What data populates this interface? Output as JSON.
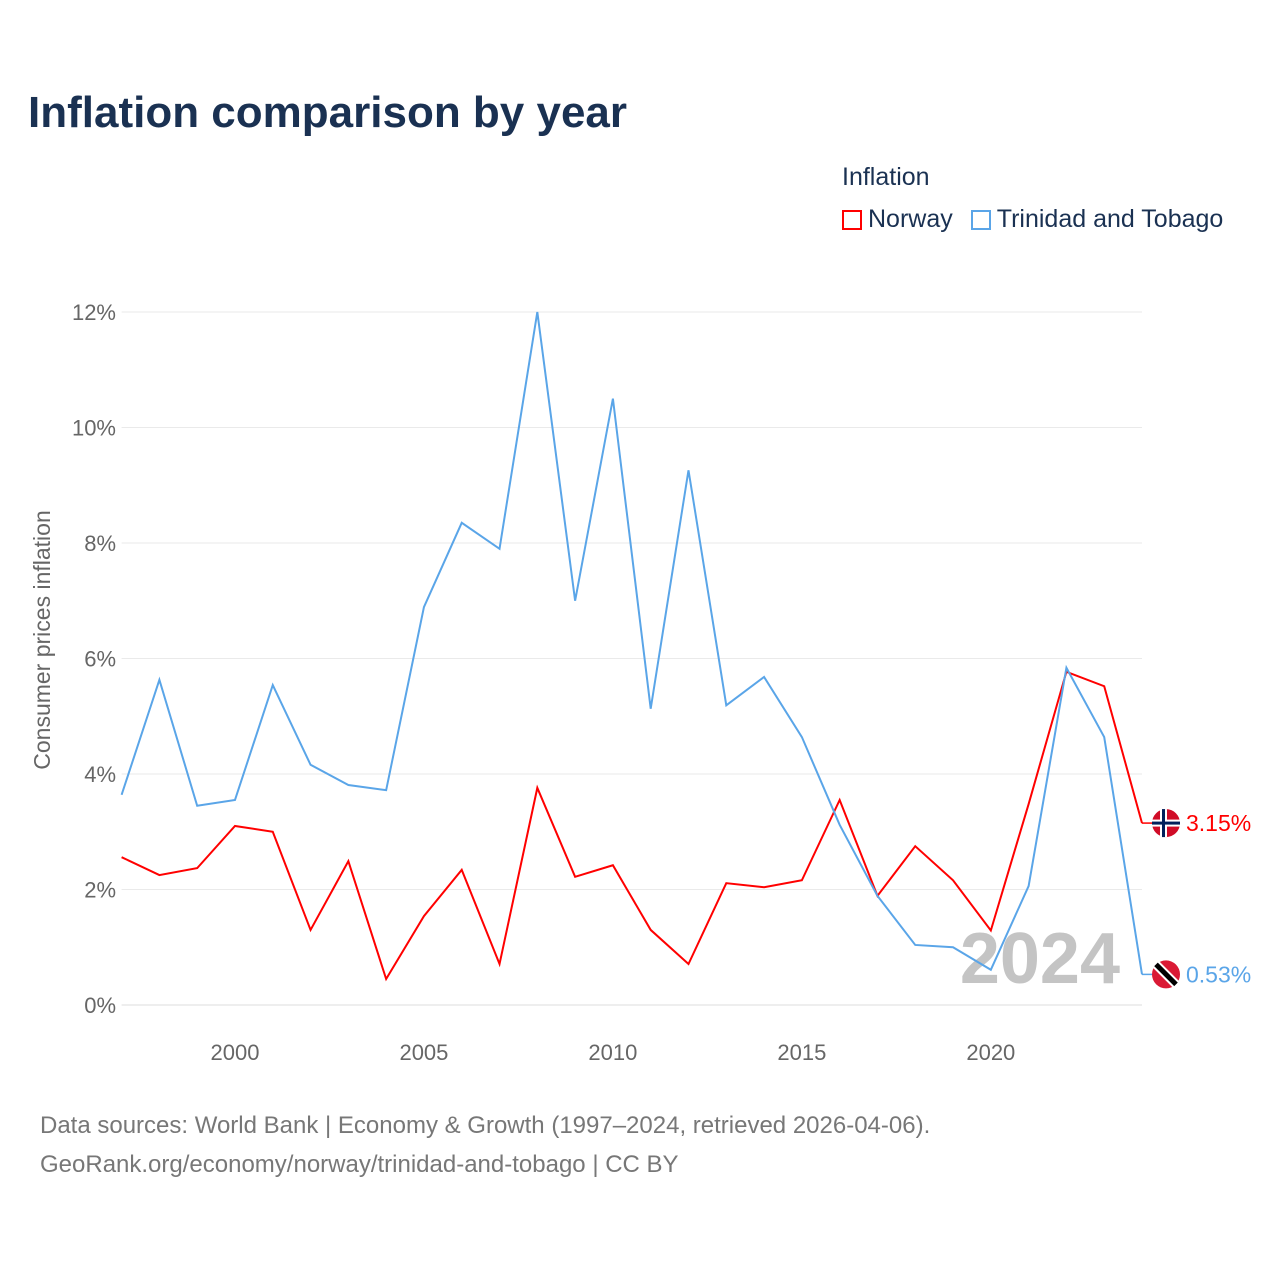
{
  "chart_data": {
    "type": "line",
    "title": "Inflation comparison by year",
    "ylabel": "Consumer prices inflation",
    "xlabel": "",
    "ylim": [
      0,
      12
    ],
    "xlim": [
      1997,
      2024
    ],
    "yticks": [
      "0%",
      "2%",
      "4%",
      "6%",
      "8%",
      "10%",
      "12%"
    ],
    "xticks": [
      "2000",
      "2005",
      "2010",
      "2015",
      "2020"
    ],
    "legend_title": "Inflation",
    "legend_placement": "top-right",
    "grid": true,
    "watermark_year": "2024",
    "x": [
      1997,
      1998,
      1999,
      2000,
      2001,
      2002,
      2003,
      2004,
      2005,
      2006,
      2007,
      2008,
      2009,
      2010,
      2011,
      2012,
      2013,
      2014,
      2015,
      2016,
      2017,
      2018,
      2019,
      2020,
      2021,
      2022,
      2023,
      2024
    ],
    "series": [
      {
        "name": "Norway",
        "color": "#ff0000",
        "end_label": "3.15%",
        "values": [
          2.56,
          2.25,
          2.37,
          3.1,
          3.0,
          1.3,
          2.49,
          0.45,
          1.54,
          2.34,
          0.71,
          3.76,
          2.22,
          2.42,
          1.3,
          0.71,
          2.11,
          2.04,
          2.16,
          3.55,
          1.89,
          2.75,
          2.16,
          1.29,
          3.48,
          5.77,
          5.52,
          3.15
        ]
      },
      {
        "name": "Trinidad and Tobago",
        "color": "#5aa5e8",
        "end_label": "0.53%",
        "values": [
          3.64,
          5.63,
          3.45,
          3.55,
          5.54,
          4.16,
          3.81,
          3.72,
          6.89,
          8.35,
          7.9,
          12.0,
          7.0,
          10.5,
          5.13,
          9.26,
          5.19,
          5.68,
          4.64,
          3.12,
          1.89,
          1.04,
          1.0,
          0.61,
          2.06,
          5.84,
          4.64,
          0.53
        ]
      }
    ]
  },
  "footer": {
    "line1": "Data sources: World Bank | Economy & Growth (1997–2024, retrieved 2026-04-06).",
    "line2": "GeoRank.org/economy/norway/trinidad-and-tobago | CC BY"
  }
}
